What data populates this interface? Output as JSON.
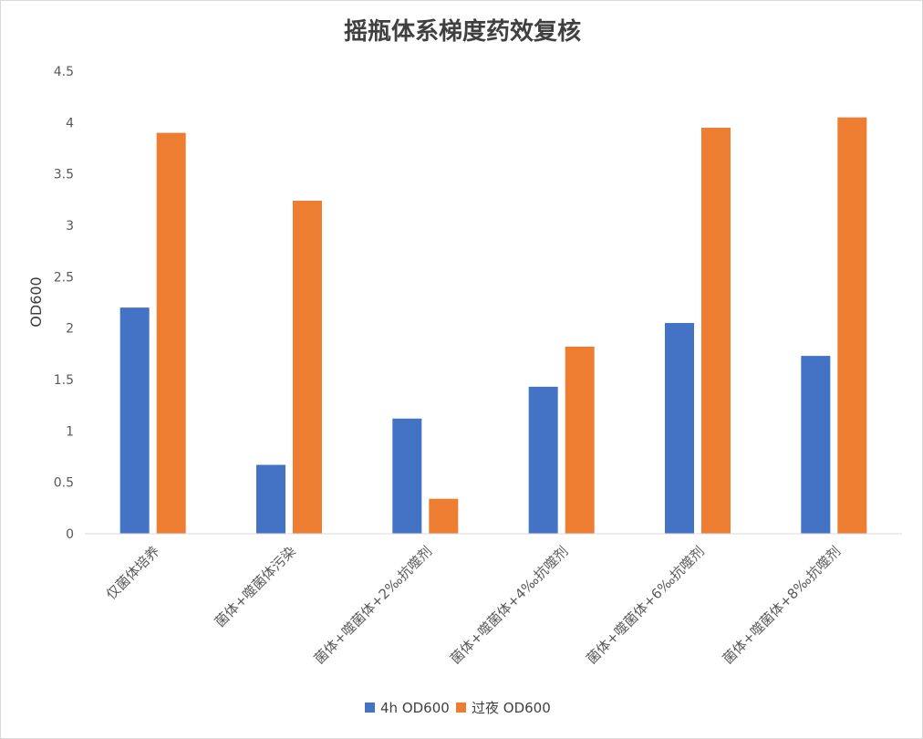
{
  "chart_data": {
    "type": "bar",
    "title": "摇瓶体系梯度药效复核",
    "ylabel": "OD600",
    "xlabel": "",
    "ylim": [
      0,
      4.5
    ],
    "yticks": [
      "0",
      "0.5",
      "1",
      "1.5",
      "2",
      "2.5",
      "3",
      "3.5",
      "4",
      "4.5"
    ],
    "categories": [
      "仅菌体培养",
      "菌体+噬菌体污染",
      "菌体+噬菌体+2‰抗噬剂",
      "菌体+噬菌体+4‰抗噬剂",
      "菌体+噬菌体+6‰抗噬剂",
      "菌体+噬菌体+8‰抗噬剂"
    ],
    "series": [
      {
        "name": "4h  OD600",
        "color": "#4472C4",
        "values": [
          2.2,
          0.67,
          1.12,
          1.43,
          2.05,
          1.73
        ]
      },
      {
        "name": "过夜  OD600",
        "color": "#ED7D31",
        "values": [
          3.9,
          3.24,
          0.34,
          1.82,
          3.95,
          4.05
        ]
      }
    ],
    "legend_position": "bottom",
    "grid": false
  }
}
